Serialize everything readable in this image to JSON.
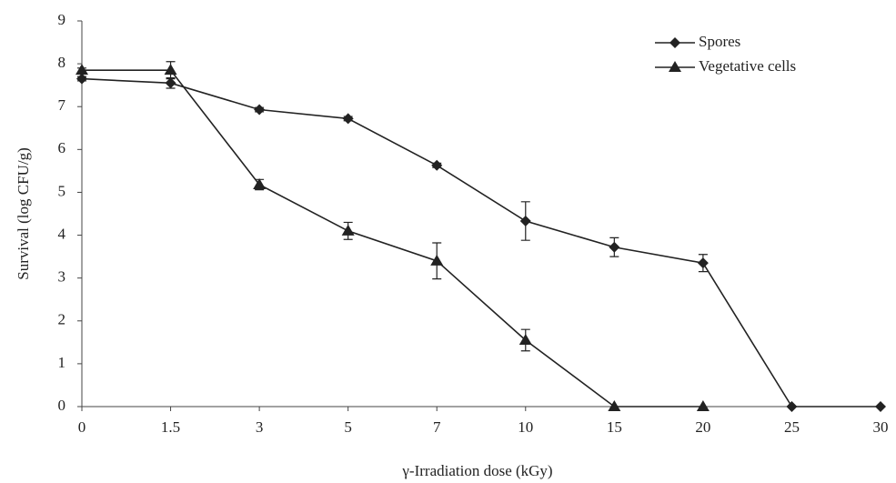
{
  "chart_data": {
    "type": "line",
    "x_label": "γ-Irradiation dose  (kGy)",
    "y_label": "Survival (log CFU/g)",
    "categories": [
      "0",
      "1.5",
      "3",
      "5",
      "7",
      "10",
      "15",
      "20",
      "25",
      "30"
    ],
    "series": [
      {
        "name": "Spores",
        "color": "#222222",
        "marker": "diamond",
        "values": [
          7.65,
          7.55,
          6.93,
          6.72,
          5.63,
          4.33,
          3.72,
          3.35,
          0,
          0
        ],
        "errors": [
          0.05,
          0.12,
          0.05,
          0.05,
          0.05,
          0.45,
          0.22,
          0.2,
          0,
          0
        ]
      },
      {
        "name": "Vegetative cells",
        "color": "#222222",
        "marker": "triangle",
        "values": [
          7.85,
          7.85,
          5.18,
          4.1,
          3.4,
          1.55,
          0,
          0,
          null,
          null
        ],
        "errors": [
          0.05,
          0.2,
          0.12,
          0.2,
          0.42,
          0.25,
          0,
          0,
          null,
          null
        ]
      }
    ],
    "ylim": [
      0,
      9
    ],
    "yticks": [
      0,
      1,
      2,
      3,
      4,
      5,
      6,
      7,
      8,
      9
    ],
    "legend": "upper right"
  }
}
